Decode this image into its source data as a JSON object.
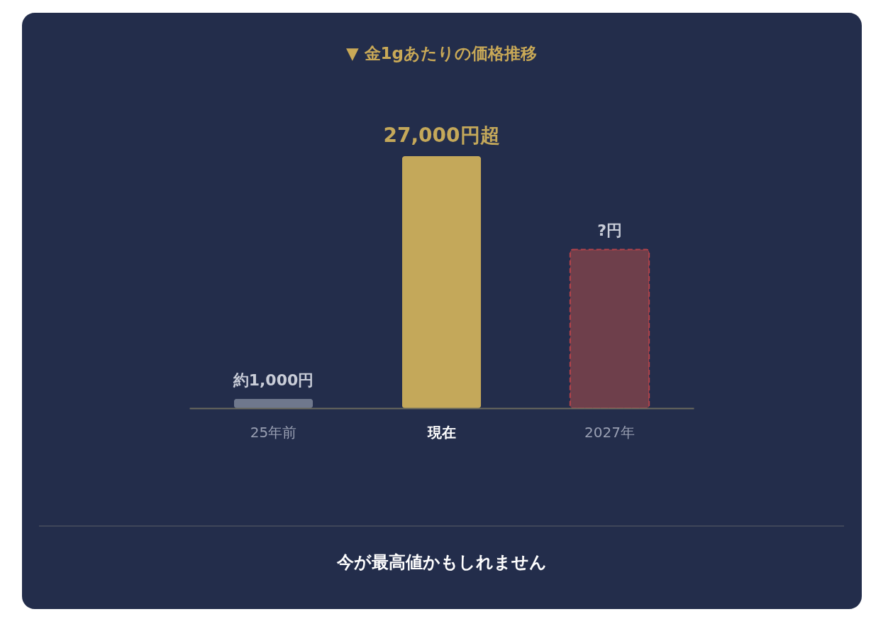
{
  "chart_data": {
    "type": "bar",
    "title": "▼ 金1gあたりの価格推移",
    "categories": [
      "25年前",
      "現在",
      "2027年"
    ],
    "series": [
      {
        "color": "#6f788d",
        "values": [
          1000,
          null,
          null
        ],
        "value_labels": [
          "約1,000円",
          null,
          null
        ]
      },
      {
        "color": "#c4a85a",
        "values": [
          null,
          27000,
          null
        ],
        "value_labels": [
          null,
          "27,000円超",
          null
        ]
      },
      {
        "color": "#6e3f4b",
        "values": [
          null,
          null,
          17000
        ],
        "value_labels": [
          null,
          null,
          "?円"
        ],
        "line_style": "dashed"
      }
    ],
    "annotations": [
      "今が最高値かもしれません"
    ]
  }
}
